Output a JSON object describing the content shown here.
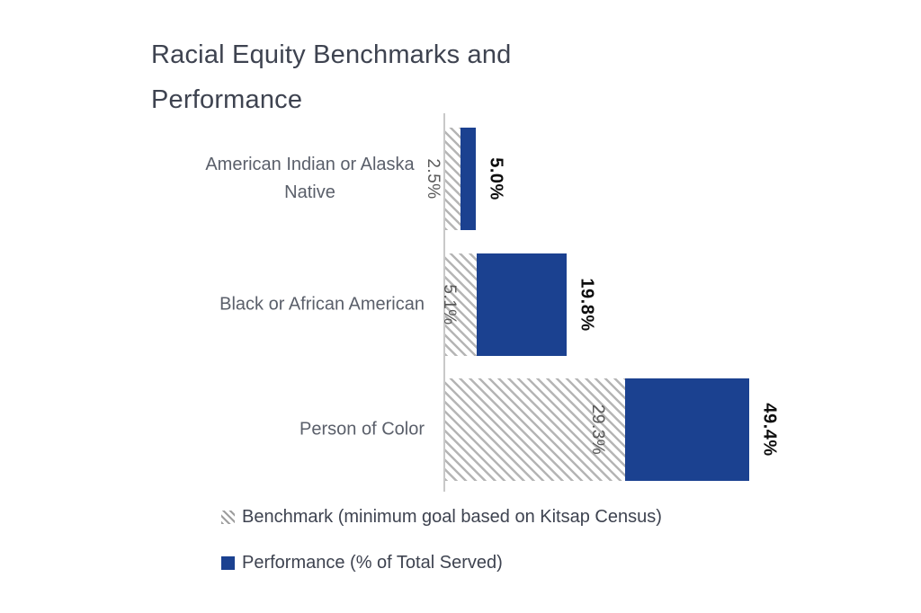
{
  "title": "Racial Equity Benchmarks and Performance",
  "chart_data": {
    "type": "bar",
    "orientation": "horizontal",
    "title": "Racial Equity Benchmarks and Performance",
    "categories": [
      "American Indian or Alaska Native",
      "Black or African American",
      "Person of Color"
    ],
    "series": [
      {
        "name": "Benchmark (minimum goal based on Kitsap Census)",
        "style": "gray-diagonal-hatch",
        "values": [
          2.5,
          5.1,
          29.3
        ],
        "labels": [
          "2.5%",
          "5.1%",
          "29.3%"
        ]
      },
      {
        "name": "Performance (% of Total Served)",
        "style": "solid-dark-blue",
        "values": [
          5.0,
          19.8,
          49.4
        ],
        "labels": [
          "5.0%",
          "19.8%",
          "49.4%"
        ]
      }
    ],
    "value_format": "0.0%",
    "xlim": [
      0,
      52
    ],
    "grid": "off",
    "axis_labels": "hidden",
    "data_label_rotation": "90deg-clockwise",
    "legend_position": "bottom-left",
    "colors": {
      "performance_blue": "#1b4190",
      "hatch_gray": "#b5b5b5",
      "axis_line": "#c9c9c9",
      "category_text": "#5a5f6a",
      "benchmark_label_text": "#595959",
      "performance_label_text": "#0d0d0d",
      "title_text": "#3e4350"
    }
  },
  "legend": {
    "items": [
      {
        "swatch": "hatched-square-icon",
        "label": "Benchmark (minimum goal based on Kitsap Census)"
      },
      {
        "swatch": "blue-square-icon",
        "label": "Performance (% of Total Served)"
      }
    ]
  }
}
